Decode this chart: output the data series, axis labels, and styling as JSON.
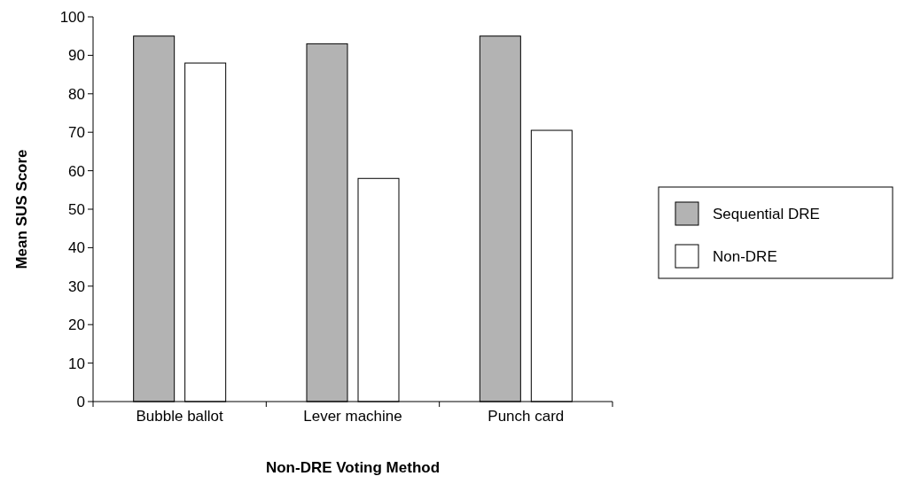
{
  "chart_data": {
    "type": "bar",
    "xlabel": "Non-DRE Voting Method",
    "ylabel": "Mean SUS Score",
    "categories": [
      "Bubble ballot",
      "Lever machine",
      "Punch card"
    ],
    "series": [
      {
        "name": "Sequential DRE",
        "color": "#b3b3b3",
        "values": [
          95,
          93,
          95
        ]
      },
      {
        "name": "Non-DRE",
        "color": "#ffffff",
        "values": [
          88,
          58,
          70.5
        ]
      }
    ],
    "ylim": [
      0,
      100
    ],
    "yticks": [
      0,
      10,
      20,
      30,
      40,
      50,
      60,
      70,
      80,
      90,
      100
    ],
    "grid": false,
    "legend": "right"
  }
}
